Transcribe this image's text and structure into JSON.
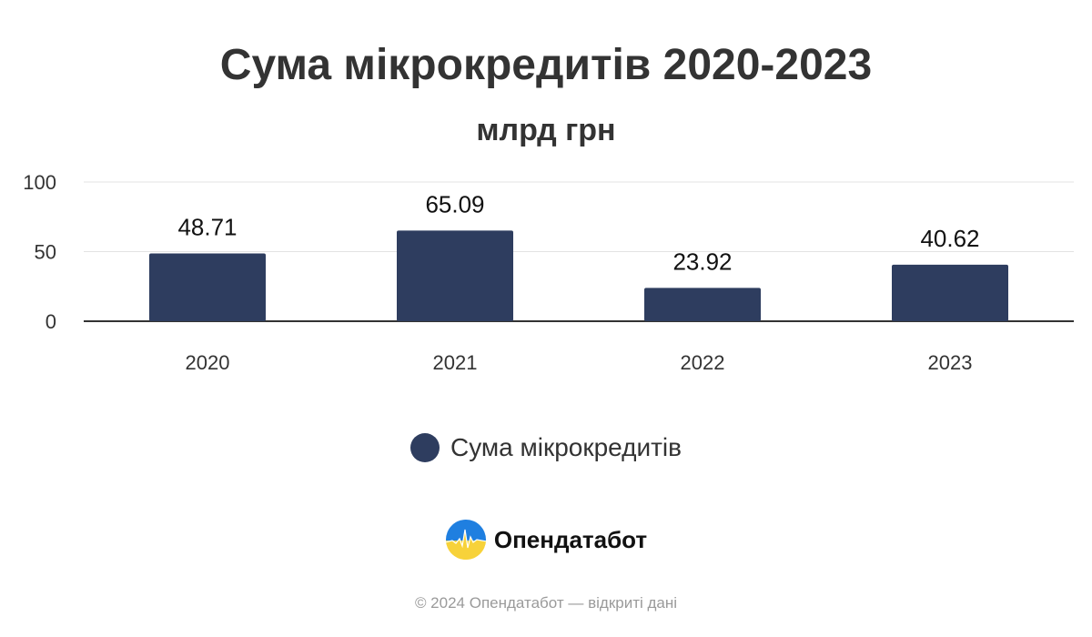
{
  "chart_data": {
    "type": "bar",
    "title": "Сума мікрокредитів 2020-2023",
    "subtitle": "млрд грн",
    "categories": [
      "2020",
      "2021",
      "2022",
      "2023"
    ],
    "series": [
      {
        "name": "Сума мікрокредитів",
        "values": [
          48.71,
          65.09,
          23.92,
          40.62
        ],
        "labels": [
          "48.71",
          "65.09",
          "23.92",
          "40.62"
        ],
        "color": "#2e3d5f"
      }
    ],
    "ylim": [
      0,
      100
    ],
    "yticks": [
      0,
      50,
      100
    ],
    "grid": true,
    "legend_position": "bottom"
  },
  "brand": {
    "name": "Опендатабот",
    "logo": "opendatabot-logo"
  },
  "footer": {
    "text": "© 2024 Опендатабот — відкриті дані"
  }
}
